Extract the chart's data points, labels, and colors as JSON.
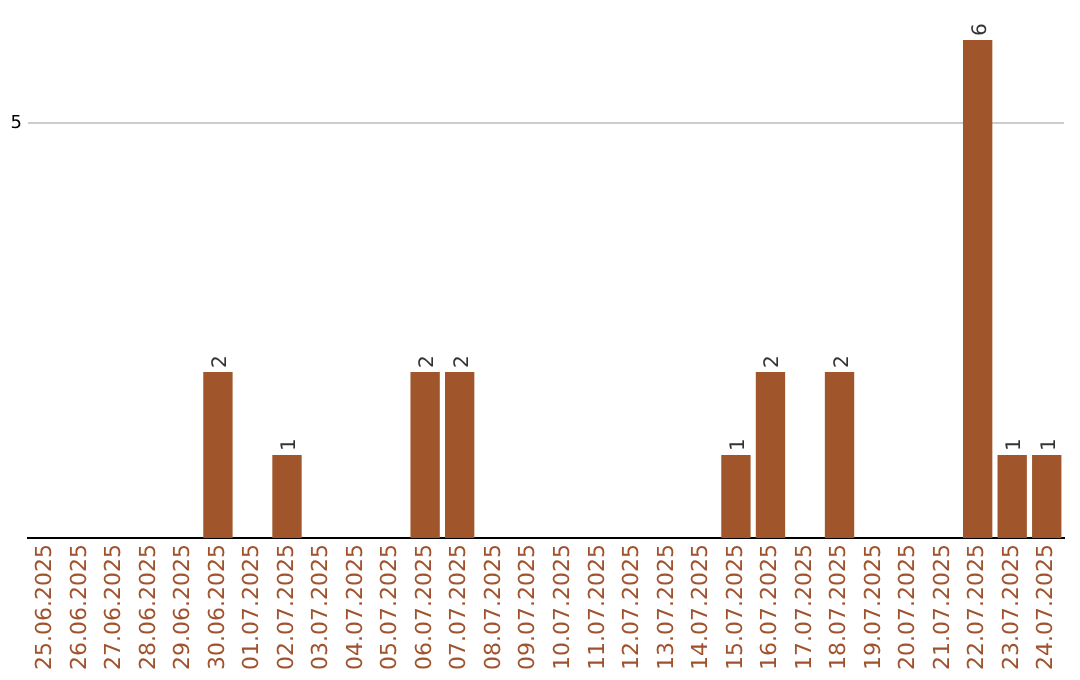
{
  "chart_data": {
    "type": "bar",
    "categories": [
      "25.06.2025",
      "26.06.2025",
      "27.06.2025",
      "28.06.2025",
      "29.06.2025",
      "30.06.2025",
      "01.07.2025",
      "02.07.2025",
      "03.07.2025",
      "04.07.2025",
      "05.07.2025",
      "06.07.2025",
      "07.07.2025",
      "08.07.2025",
      "09.07.2025",
      "10.07.2025",
      "11.07.2025",
      "12.07.2025",
      "13.07.2025",
      "14.07.2025",
      "15.07.2025",
      "16.07.2025",
      "17.07.2025",
      "18.07.2025",
      "19.07.2025",
      "20.07.2025",
      "21.07.2025",
      "22.07.2025",
      "23.07.2025",
      "24.07.2025"
    ],
    "values": [
      0,
      0,
      0,
      0,
      0,
      2,
      0,
      1,
      0,
      0,
      0,
      2,
      2,
      0,
      0,
      0,
      0,
      0,
      0,
      0,
      1,
      2,
      0,
      2,
      0,
      0,
      0,
      6,
      1,
      1
    ],
    "value_labels": [
      null,
      null,
      null,
      null,
      null,
      "2",
      null,
      "1",
      null,
      null,
      null,
      "2",
      "2",
      null,
      null,
      null,
      null,
      null,
      null,
      null,
      "1",
      "2",
      null,
      "2",
      null,
      null,
      null,
      "6",
      "1",
      "1"
    ],
    "color": "#a0562a",
    "ref_lines": [
      {
        "axis": "y",
        "value": 5,
        "label": "5",
        "color": "#cccccc"
      }
    ],
    "legend": false
  }
}
